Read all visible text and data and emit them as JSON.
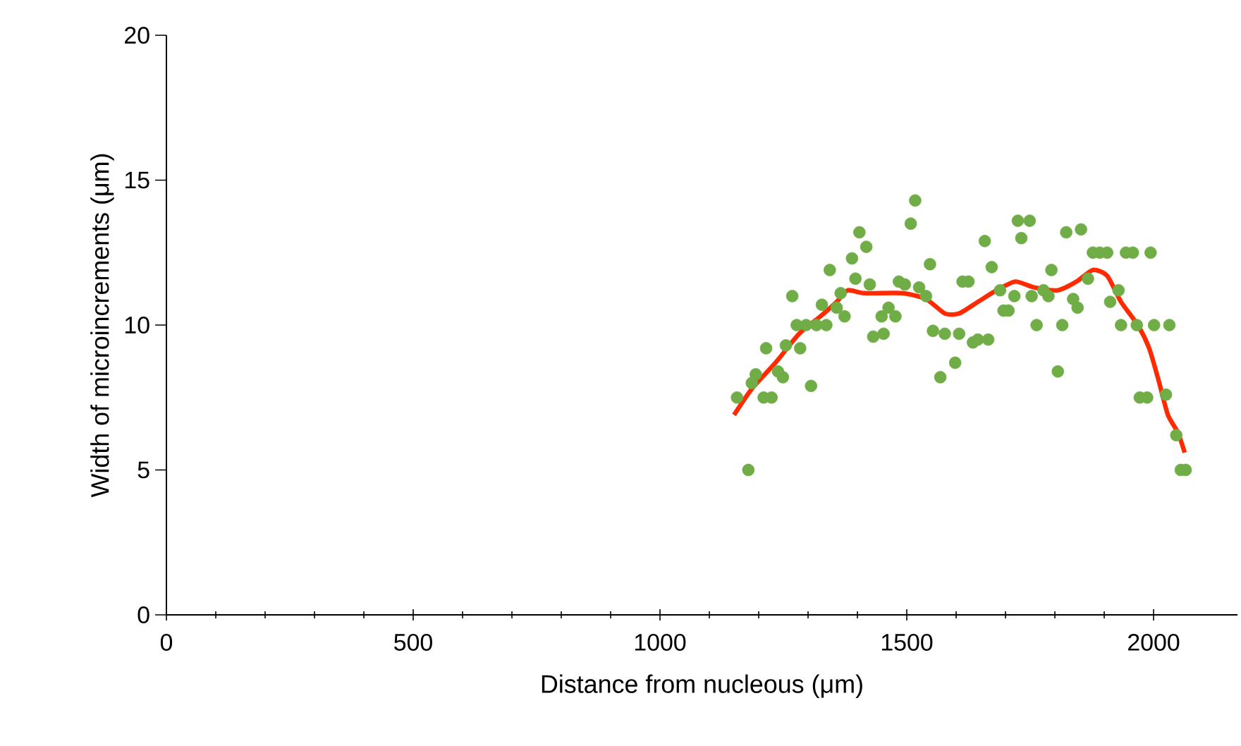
{
  "chart_data": {
    "type": "scatter",
    "xlabel": "Distance from nucleous (μm)",
    "ylabel": "Width of microincrements (μm)",
    "xlim": [
      0,
      2170
    ],
    "xticks": [
      0,
      500,
      1000,
      1500,
      2000
    ],
    "ylim": [
      0,
      20
    ],
    "yticks": [
      0,
      5,
      10,
      15,
      20
    ],
    "grid": false,
    "series": [
      {
        "marker": "circle",
        "color": "#70ad47",
        "x": [
          1156,
          1179,
          1186,
          1194,
          1210,
          1226,
          1215,
          1239,
          1249,
          1255,
          1268,
          1277,
          1296,
          1317,
          1337,
          1284,
          1306,
          1328,
          1344,
          1358,
          1366,
          1374,
          1389,
          1396,
          1404,
          1418,
          1425,
          1432,
          1453,
          1449,
          1463,
          1477,
          1484,
          1496,
          1508,
          1517,
          1525,
          1539,
          1547,
          1553,
          1577,
          1606,
          1568,
          1598,
          1613,
          1625,
          1634,
          1644,
          1665,
          1658,
          1672,
          1689,
          1696,
          1706,
          1718,
          1725,
          1749,
          1732,
          1753,
          1763,
          1777,
          1787,
          1793,
          1806,
          1815,
          1823,
          1837,
          1846,
          1853,
          1867,
          1877,
          1891,
          1906,
          1912,
          1929,
          1934,
          1966,
          1944,
          1958,
          1994,
          2001,
          2032,
          1972,
          1987,
          2025,
          2046,
          2055,
          2065
        ],
        "values": [
          7.5,
          5.0,
          8.0,
          8.3,
          7.5,
          7.5,
          9.2,
          8.4,
          8.2,
          9.3,
          11.0,
          10.0,
          10.0,
          10.0,
          10.0,
          9.2,
          7.9,
          10.7,
          11.9,
          10.6,
          11.1,
          10.3,
          12.3,
          11.6,
          13.2,
          12.7,
          11.4,
          9.6,
          9.7,
          10.3,
          10.6,
          10.3,
          11.5,
          11.4,
          13.5,
          14.3,
          11.3,
          11.0,
          12.1,
          9.8,
          9.7,
          9.7,
          8.2,
          8.7,
          11.5,
          11.5,
          9.4,
          9.5,
          9.5,
          12.9,
          12.0,
          11.2,
          10.5,
          10.5,
          11.0,
          13.6,
          13.6,
          13.0,
          11.0,
          10.0,
          11.2,
          11.0,
          11.9,
          8.4,
          10.0,
          13.2,
          10.9,
          10.6,
          13.3,
          11.6,
          12.5,
          12.5,
          12.5,
          10.8,
          11.2,
          10.0,
          10.0,
          12.5,
          12.5,
          12.5,
          10.0,
          10.0,
          7.5,
          7.5,
          7.6,
          6.2,
          5.0,
          5.0
        ]
      },
      {
        "type": "line",
        "marker": "none",
        "line_style": "solid",
        "color": "#ff2a00",
        "x": [
          1150,
          1186,
          1234,
          1282,
          1325,
          1358,
          1380,
          1414,
          1491,
          1539,
          1577,
          1606,
          1644,
          1682,
          1720,
          1758,
          1806,
          1844,
          1877,
          1906,
          1934,
          1968,
          1991,
          2010,
          2029,
          2049,
          2063
        ],
        "values": [
          6.9,
          7.8,
          8.7,
          9.7,
          10.3,
          10.8,
          11.2,
          11.1,
          11.1,
          10.9,
          10.4,
          10.4,
          10.8,
          11.2,
          11.5,
          11.3,
          11.2,
          11.5,
          11.9,
          11.7,
          10.8,
          10.0,
          9.2,
          8.1,
          6.9,
          6.3,
          5.6
        ]
      }
    ]
  }
}
